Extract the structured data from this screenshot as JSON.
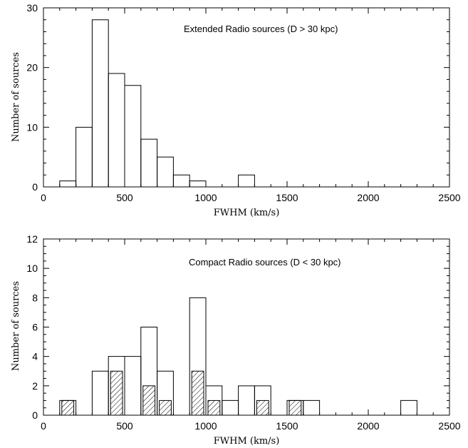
{
  "chart_data": [
    {
      "type": "histogram",
      "annotation": "Extended Radio sources (D > 30 kpc)",
      "xlabel": "FWHM (km/s)",
      "ylabel": "Number of sources",
      "xlim": [
        0,
        2500
      ],
      "ylim": [
        0,
        30
      ],
      "xticks": [
        0,
        500,
        1000,
        1500,
        2000,
        2500
      ],
      "yticks": [
        0,
        10,
        20,
        30
      ],
      "bin_width": 100,
      "series": [
        {
          "bins": [
            {
              "x0": 100,
              "x1": 200,
              "count": 1
            },
            {
              "x0": 200,
              "x1": 300,
              "count": 10
            },
            {
              "x0": 300,
              "x1": 400,
              "count": 28
            },
            {
              "x0": 400,
              "x1": 500,
              "count": 19
            },
            {
              "x0": 500,
              "x1": 600,
              "count": 17
            },
            {
              "x0": 600,
              "x1": 700,
              "count": 8
            },
            {
              "x0": 700,
              "x1": 800,
              "count": 5
            },
            {
              "x0": 800,
              "x1": 900,
              "count": 2
            },
            {
              "x0": 900,
              "x1": 1000,
              "count": 1
            },
            {
              "x0": 1200,
              "x1": 1300,
              "count": 2
            }
          ],
          "style": "outline"
        }
      ]
    },
    {
      "type": "histogram",
      "annotation": "Compact Radio sources (D < 30 kpc)",
      "xlabel": "FWHM (km/s)",
      "ylabel": "Number of sources",
      "xlim": [
        0,
        2500
      ],
      "ylim": [
        0,
        12
      ],
      "xticks": [
        0,
        500,
        1000,
        1500,
        2000,
        2500
      ],
      "yticks": [
        0,
        2,
        4,
        6,
        8,
        10,
        12
      ],
      "bin_width": 100,
      "series": [
        {
          "bins": [
            {
              "x0": 100,
              "x1": 200,
              "count": 1
            },
            {
              "x0": 300,
              "x1": 400,
              "count": 3
            },
            {
              "x0": 400,
              "x1": 500,
              "count": 4
            },
            {
              "x0": 500,
              "x1": 600,
              "count": 4
            },
            {
              "x0": 600,
              "x1": 700,
              "count": 6
            },
            {
              "x0": 700,
              "x1": 800,
              "count": 3
            },
            {
              "x0": 900,
              "x1": 1000,
              "count": 8
            },
            {
              "x0": 1000,
              "x1": 1100,
              "count": 2
            },
            {
              "x0": 1100,
              "x1": 1200,
              "count": 1
            },
            {
              "x0": 1200,
              "x1": 1300,
              "count": 2
            },
            {
              "x0": 1300,
              "x1": 1400,
              "count": 2
            },
            {
              "x0": 1500,
              "x1": 1600,
              "count": 1
            },
            {
              "x0": 1600,
              "x1": 1700,
              "count": 1
            },
            {
              "x0": 2200,
              "x1": 2300,
              "count": 1
            }
          ],
          "style": "outline"
        },
        {
          "bins": [
            {
              "x0": 100,
              "x1": 200,
              "count": 1
            },
            {
              "x0": 400,
              "x1": 500,
              "count": 3
            },
            {
              "x0": 600,
              "x1": 700,
              "count": 2
            },
            {
              "x0": 700,
              "x1": 800,
              "count": 1
            },
            {
              "x0": 900,
              "x1": 1000,
              "count": 3
            },
            {
              "x0": 1000,
              "x1": 1100,
              "count": 1
            },
            {
              "x0": 1300,
              "x1": 1400,
              "count": 1
            },
            {
              "x0": 1500,
              "x1": 1600,
              "count": 1
            }
          ],
          "style": "hatched"
        }
      ]
    }
  ]
}
